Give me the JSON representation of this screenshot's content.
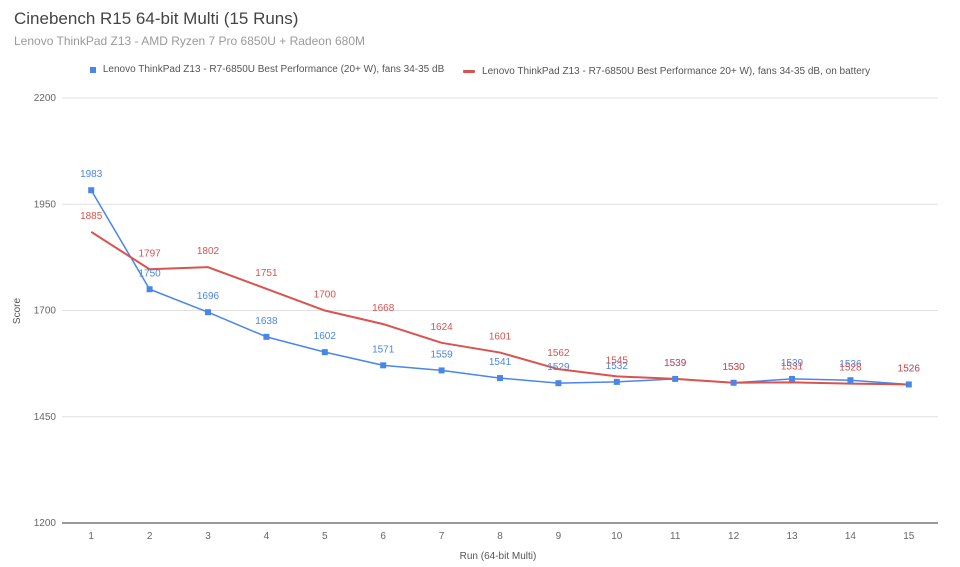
{
  "chart_data": {
    "type": "line",
    "title": "Cinebench R15 64-bit Multi (15 Runs)",
    "subtitle": "Lenovo ThinkPad Z13 - AMD Ryzen 7 Pro 6850U  + Radeon 680M",
    "xlabel": "Run (64-bit Multi)",
    "ylabel": "Score",
    "ylim": [
      1200,
      2200
    ],
    "yticks": [
      1200,
      1450,
      1700,
      1950,
      2200
    ],
    "grid": true,
    "legend_position": "top",
    "categories": [
      "1",
      "2",
      "3",
      "4",
      "5",
      "6",
      "7",
      "8",
      "9",
      "10",
      "11",
      "12",
      "13",
      "14",
      "15"
    ],
    "series": [
      {
        "name": "Lenovo ThinkPad Z13 - R7-6850U Best Performance (20+ W), fans 34-35 dB",
        "color": "#4a86e8",
        "marker": "square",
        "values": [
          1983,
          1750,
          1696,
          1638,
          1602,
          1571,
          1559,
          1541,
          1529,
          1532,
          1539,
          1530,
          1539,
          1536,
          1526
        ]
      },
      {
        "name": "Lenovo ThinkPad Z13 - R7-6850U Best Performance 20+ W), fans 34-35 dB, on battery",
        "color": "#d9534f",
        "marker": "none",
        "values": [
          1885,
          1797,
          1802,
          1751,
          1700,
          1668,
          1624,
          1601,
          1562,
          1545,
          1539,
          1530,
          1531,
          1528,
          1526
        ]
      }
    ]
  }
}
